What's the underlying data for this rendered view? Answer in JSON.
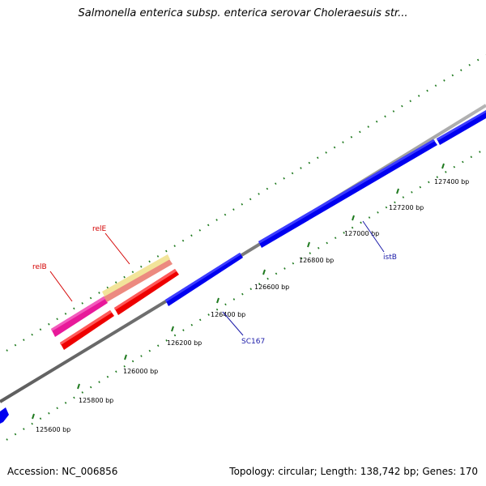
{
  "title": "Salmonella enterica subsp. enterica serovar Choleraesuis str...",
  "footer": {
    "accession": "Accession: NC_006856",
    "summary": "Topology: circular; Length: 138,742 bp; Genes: 170"
  },
  "colors": {
    "backbone": "#8a8a8a",
    "tick": "#1f7a1f",
    "blue_gene": "#0000f0",
    "red_gene": "#ee0000",
    "magenta_gene": "#e8199a",
    "salmon_gene": "#ec8a80",
    "yellow_gene": "#f2e49a",
    "red_label": "#d40000",
    "blue_label": "#1a1aa8"
  },
  "ticks": [
    {
      "label": "125600 bp"
    },
    {
      "label": "125800 bp"
    },
    {
      "label": "126000 bp"
    },
    {
      "label": "126200 bp"
    },
    {
      "label": "126400 bp"
    },
    {
      "label": "126600 bp"
    },
    {
      "label": "126800 bp"
    },
    {
      "label": "127000 bp"
    },
    {
      "label": "127200 bp"
    },
    {
      "label": "127400 bp"
    }
  ],
  "gene_labels": [
    {
      "id": "relE",
      "text": "relE"
    },
    {
      "id": "relB",
      "text": "relB"
    },
    {
      "id": "SC167",
      "text": "SC167"
    },
    {
      "id": "istB",
      "text": "istB"
    }
  ]
}
